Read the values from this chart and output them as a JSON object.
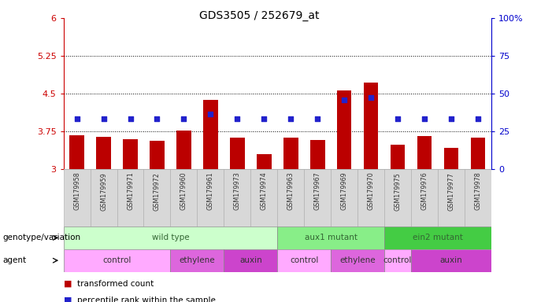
{
  "title": "GDS3505 / 252679_at",
  "samples": [
    "GSM179958",
    "GSM179959",
    "GSM179971",
    "GSM179972",
    "GSM179960",
    "GSM179961",
    "GSM179973",
    "GSM179974",
    "GSM179963",
    "GSM179967",
    "GSM179969",
    "GSM179970",
    "GSM179975",
    "GSM179976",
    "GSM179977",
    "GSM179978"
  ],
  "bar_values": [
    3.68,
    3.64,
    3.6,
    3.57,
    3.76,
    4.38,
    3.63,
    3.3,
    3.62,
    3.58,
    4.56,
    4.72,
    3.48,
    3.65,
    3.42,
    3.62
  ],
  "dot_values": [
    4.0,
    4.0,
    4.0,
    4.0,
    4.0,
    4.1,
    4.0,
    4.0,
    4.0,
    4.0,
    4.38,
    4.42,
    4.0,
    4.0,
    4.0,
    4.0
  ],
  "ylim_left": [
    3,
    6
  ],
  "ylim_right": [
    0,
    100
  ],
  "yticks_left": [
    3,
    3.75,
    4.5,
    5.25,
    6
  ],
  "yticks_right": [
    0,
    25,
    50,
    75,
    100
  ],
  "bar_color": "#bb0000",
  "dot_color": "#2222cc",
  "genotype_groups": [
    {
      "label": "wild type",
      "start": 0,
      "end": 7,
      "color": "#ccffcc"
    },
    {
      "label": "aux1 mutant",
      "start": 8,
      "end": 11,
      "color": "#88ee88"
    },
    {
      "label": "ein2 mutant",
      "start": 12,
      "end": 15,
      "color": "#44cc44"
    }
  ],
  "agent_groups": [
    {
      "label": "control",
      "start": 0,
      "end": 3,
      "color": "#ffaaff"
    },
    {
      "label": "ethylene",
      "start": 4,
      "end": 5,
      "color": "#dd66dd"
    },
    {
      "label": "auxin",
      "start": 6,
      "end": 7,
      "color": "#cc44cc"
    },
    {
      "label": "control",
      "start": 8,
      "end": 9,
      "color": "#ffaaff"
    },
    {
      "label": "ethylene",
      "start": 10,
      "end": 11,
      "color": "#dd66dd"
    },
    {
      "label": "control",
      "start": 12,
      "end": 12,
      "color": "#ffaaff"
    },
    {
      "label": "auxin",
      "start": 13,
      "end": 15,
      "color": "#cc44cc"
    }
  ],
  "left_axis_color": "#cc0000",
  "right_axis_color": "#0000cc",
  "grid_color": "#000000"
}
